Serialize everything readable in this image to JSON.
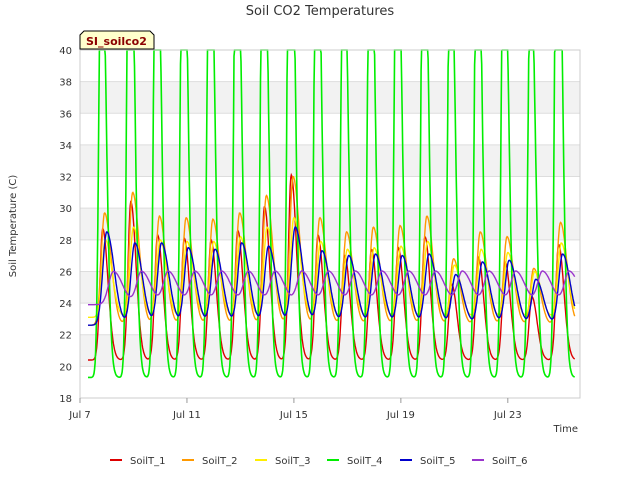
{
  "chart_data": {
    "type": "line",
    "title": "Soil CO2 Temperatures",
    "badge": "SI_soilco2",
    "xlabel": "Time",
    "ylabel": "Soil Temperature (C)",
    "ylim": [
      18,
      40
    ],
    "yticks": [
      18,
      20,
      22,
      24,
      26,
      28,
      30,
      32,
      34,
      36,
      38,
      40
    ],
    "xlim": [
      7.0,
      25.7
    ],
    "xticks": [
      {
        "value": 7,
        "label": "Jul 7"
      },
      {
        "value": 11,
        "label": "Jul 11"
      },
      {
        "value": 15,
        "label": "Jul 15"
      },
      {
        "value": 19,
        "label": "Jul 19"
      },
      {
        "value": 23,
        "label": "Jul 23"
      }
    ],
    "grid": true,
    "legend_position": "bottom",
    "day_peaks": [
      {
        "day": 7,
        "t": 7.8,
        "a": 8.3,
        "b": 7.1,
        "c": 4.9,
        "d": 29.6,
        "e": 5.9,
        "f": 2.1
      },
      {
        "day": 8,
        "t": 8.85,
        "a": 10.0,
        "b": 8.4,
        "c": 5.7,
        "d": 36.5,
        "e": 5.2,
        "f": 2.1
      },
      {
        "day": 9,
        "t": 9.85,
        "a": 7.9,
        "b": 6.9,
        "c": 4.9,
        "d": 33.8,
        "e": 5.2,
        "f": 2.1
      },
      {
        "day": 10,
        "t": 10.85,
        "a": 7.7,
        "b": 6.8,
        "c": 4.8,
        "d": 33.4,
        "e": 4.9,
        "f": 2.1
      },
      {
        "day": 11,
        "t": 11.85,
        "a": 7.6,
        "b": 6.7,
        "c": 4.8,
        "d": 33.3,
        "e": 4.8,
        "f": 2.1
      },
      {
        "day": 12,
        "t": 12.85,
        "a": 8.2,
        "b": 7.1,
        "c": 5.1,
        "d": 33.5,
        "e": 5.2,
        "f": 2.1
      },
      {
        "day": 13,
        "t": 13.85,
        "a": 9.7,
        "b": 8.2,
        "c": 5.7,
        "d": 34.6,
        "e": 5.0,
        "f": 2.1
      },
      {
        "day": 14,
        "t": 14.85,
        "a": 11.7,
        "b": 9.4,
        "c": 6.3,
        "d": 38.9,
        "e": 6.2,
        "f": 2.1
      },
      {
        "day": 15,
        "t": 15.85,
        "a": 7.9,
        "b": 6.8,
        "c": 4.8,
        "d": 33.0,
        "e": 4.7,
        "f": 2.1
      },
      {
        "day": 16,
        "t": 16.85,
        "a": 6.6,
        "b": 5.9,
        "c": 4.3,
        "d": 29.0,
        "e": 4.4,
        "f": 2.1
      },
      {
        "day": 17,
        "t": 17.85,
        "a": 7.0,
        "b": 6.2,
        "c": 4.4,
        "d": 33.2,
        "e": 4.5,
        "f": 2.1
      },
      {
        "day": 18,
        "t": 18.85,
        "a": 7.1,
        "b": 6.3,
        "c": 4.5,
        "d": 33.0,
        "e": 4.4,
        "f": 2.1
      },
      {
        "day": 19,
        "t": 19.85,
        "a": 7.8,
        "b": 6.9,
        "c": 4.8,
        "d": 33.2,
        "e": 4.5,
        "f": 2.1
      },
      {
        "day": 20,
        "t": 20.85,
        "a": 4.8,
        "b": 4.2,
        "c": 3.3,
        "d": 29.7,
        "e": 3.2,
        "f": 2.1
      },
      {
        "day": 21,
        "t": 21.85,
        "a": 6.5,
        "b": 5.9,
        "c": 4.3,
        "d": 33.0,
        "e": 4.0,
        "f": 2.1
      },
      {
        "day": 22,
        "t": 22.85,
        "a": 6.2,
        "b": 5.6,
        "c": 4.1,
        "d": 30.7,
        "e": 4.1,
        "f": 2.1
      },
      {
        "day": 23,
        "t": 23.85,
        "a": 4.0,
        "b": 3.6,
        "c": 2.9,
        "d": 27.0,
        "e": 2.9,
        "f": 2.1
      },
      {
        "day": 24,
        "t": 24.85,
        "a": 7.3,
        "b": 6.5,
        "c": 4.7,
        "d": 37.3,
        "e": 4.5,
        "f": 2.1
      }
    ],
    "series": [
      {
        "name": "SoilT_1",
        "color": "#dd0000",
        "base": 20.4,
        "amp_key": "a",
        "lag": 0.05,
        "sharp": 3
      },
      {
        "name": "SoilT_2",
        "color": "#ff9900",
        "base": 22.6,
        "amp_key": "b",
        "lag": 0.12,
        "sharp": 2
      },
      {
        "name": "SoilT_3",
        "color": "#ffee00",
        "base": 23.1,
        "amp_key": "c",
        "lag": 0.15,
        "sharp": 2
      },
      {
        "name": "SoilT_4",
        "color": "#00ee00",
        "base": 19.3,
        "amp_key": "d",
        "lag": 0.0,
        "sharp": 4
      },
      {
        "name": "SoilT_5",
        "color": "#0000cc",
        "base": 22.6,
        "amp_key": "e",
        "lag": 0.2,
        "sharp": 1.5
      },
      {
        "name": "SoilT_6",
        "color": "#9933cc",
        "base": 23.9,
        "amp_key": "f",
        "lag": 0.45,
        "sharp": 1
      }
    ]
  }
}
